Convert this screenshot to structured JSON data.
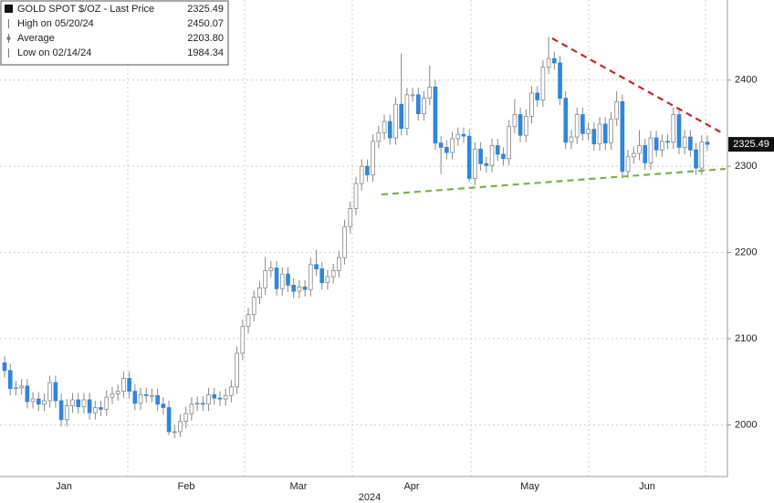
{
  "chart_data": {
    "type": "candlestick",
    "legend": [
      {
        "label": "GOLD SPOT $/OZ - Last Price",
        "value": 2325.49
      },
      {
        "label": "High on 05/20/24",
        "value": 2450.07
      },
      {
        "label": "Average",
        "value": 2203.8,
        "value_label": "2203.80"
      },
      {
        "label": "Low on 02/14/24",
        "value": 1984.34
      }
    ],
    "x_labels": [
      "Jan",
      "Feb",
      "Mar",
      "Apr",
      "May",
      "Jun"
    ],
    "x_sublabel": "2024",
    "ylim": [
      1940,
      2493
    ],
    "yticks": [
      2000,
      2100,
      2200,
      2300,
      2400
    ],
    "grid": true,
    "up_color": "#ffffff",
    "down_color": "#2e86de",
    "series": [
      {
        "name": "GOLD SPOT $/OZ",
        "open": [
          2072,
          2063,
          2042,
          2043,
          2045,
          2027,
          2030,
          2024,
          2028,
          2049,
          2028,
          2006,
          2022,
          2029,
          2021,
          2029,
          2014,
          2020,
          2018,
          2032,
          2036,
          2039,
          2054,
          2039,
          2025,
          2035,
          2034,
          2034,
          2024,
          2020,
          1992,
          1992,
          2004,
          2013,
          2024,
          2025,
          2024,
          2035,
          2031,
          2030,
          2034,
          2044,
          2083,
          2114,
          2128,
          2148,
          2159,
          2179,
          2182,
          2158,
          2175,
          2162,
          2155,
          2160,
          2157,
          2186,
          2181,
          2165,
          2172,
          2179,
          2194,
          2230,
          2251,
          2280,
          2300,
          2290,
          2329,
          2339,
          2352,
          2333,
          2372,
          2344,
          2383,
          2383,
          2361,
          2379,
          2392,
          2327,
          2322,
          2316,
          2332,
          2337,
          2335,
          2286,
          2320,
          2303,
          2301,
          2324,
          2314,
          2309,
          2346,
          2360,
          2336,
          2358,
          2385,
          2377,
          2415,
          2425,
          2420,
          2379,
          2328,
          2334,
          2360,
          2338,
          2343,
          2326,
          2349,
          2327,
          2355,
          2375,
          2294,
          2311,
          2315,
          2324,
          2304,
          2333,
          2319,
          2329,
          2328,
          2360,
          2322,
          2334,
          2319,
          2298,
          2328
        ],
        "high": [
          2080,
          2071,
          2051,
          2053,
          2053,
          2038,
          2038,
          2036,
          2057,
          2057,
          2036,
          2030,
          2037,
          2037,
          2037,
          2037,
          2028,
          2028,
          2040,
          2044,
          2047,
          2062,
          2062,
          2047,
          2043,
          2043,
          2042,
          2042,
          2032,
          2028,
          2000,
          2012,
          2021,
          2032,
          2033,
          2033,
          2043,
          2043,
          2039,
          2042,
          2052,
          2091,
          2122,
          2136,
          2156,
          2167,
          2195,
          2190,
          2190,
          2183,
          2183,
          2170,
          2168,
          2168,
          2194,
          2203,
          2189,
          2180,
          2187,
          2202,
          2238,
          2259,
          2288,
          2308,
          2308,
          2337,
          2347,
          2360,
          2360,
          2380,
          2431,
          2391,
          2391,
          2391,
          2387,
          2417,
          2400,
          2335,
          2330,
          2340,
          2345,
          2345,
          2343,
          2328,
          2328,
          2311,
          2332,
          2332,
          2322,
          2354,
          2378,
          2368,
          2366,
          2393,
          2393,
          2423,
          2450.07,
          2433,
          2428,
          2387,
          2342,
          2368,
          2368,
          2351,
          2351,
          2357,
          2357,
          2363,
          2387,
          2383,
          2319,
          2323,
          2342,
          2332,
          2341,
          2341,
          2337,
          2337,
          2368,
          2368,
          2342,
          2342,
          2327,
          2336,
          2336
        ],
        "low": [
          2055,
          2034,
          2034,
          2035,
          2019,
          2019,
          2016,
          2016,
          2020,
          2020,
          1998,
          1998,
          2014,
          2013,
          2013,
          2006,
          2006,
          2010,
          2010,
          2024,
          2028,
          2031,
          2031,
          2017,
          2017,
          2026,
          2026,
          2016,
          2012,
          1988,
          1984.34,
          1986,
          1996,
          2005,
          2016,
          2016,
          2016,
          2023,
          2022,
          2022,
          2026,
          2036,
          2075,
          2106,
          2120,
          2140,
          2151,
          2171,
          2150,
          2150,
          2154,
          2147,
          2147,
          2149,
          2149,
          2173,
          2157,
          2157,
          2164,
          2171,
          2186,
          2222,
          2243,
          2272,
          2282,
          2282,
          2321,
          2331,
          2325,
          2325,
          2336,
          2336,
          2375,
          2353,
          2353,
          2371,
          2319,
          2291,
          2308,
          2308,
          2324,
          2327,
          2282,
          2278,
          2295,
          2293,
          2293,
          2306,
          2301,
          2301,
          2338,
          2328,
          2328,
          2350,
          2369,
          2369,
          2407,
          2412,
          2371,
          2320,
          2320,
          2326,
          2330,
          2330,
          2318,
          2318,
          2319,
          2319,
          2347,
          2286,
          2286,
          2303,
          2307,
          2296,
          2296,
          2311,
          2311,
          2320,
          2320,
          2314,
          2314,
          2311,
          2290,
          2290,
          2318
        ],
        "close": [
          2063,
          2042,
          2043,
          2045,
          2027,
          2030,
          2024,
          2028,
          2049,
          2028,
          2006,
          2022,
          2029,
          2021,
          2029,
          2014,
          2020,
          2018,
          2032,
          2036,
          2039,
          2054,
          2039,
          2025,
          2035,
          2034,
          2034,
          2024,
          2020,
          1992,
          1992,
          2004,
          2013,
          2024,
          2025,
          2024,
          2035,
          2031,
          2030,
          2034,
          2044,
          2083,
          2114,
          2128,
          2148,
          2159,
          2179,
          2182,
          2158,
          2175,
          2162,
          2155,
          2160,
          2157,
          2186,
          2181,
          2165,
          2172,
          2179,
          2194,
          2230,
          2251,
          2280,
          2300,
          2290,
          2329,
          2339,
          2352,
          2333,
          2372,
          2344,
          2383,
          2383,
          2361,
          2379,
          2392,
          2327,
          2322,
          2316,
          2332,
          2337,
          2335,
          2286,
          2320,
          2303,
          2301,
          2324,
          2314,
          2309,
          2346,
          2360,
          2336,
          2358,
          2385,
          2377,
          2415,
          2425,
          2420,
          2379,
          2328,
          2334,
          2360,
          2338,
          2343,
          2326,
          2349,
          2327,
          2355,
          2375,
          2294,
          2311,
          2315,
          2324,
          2304,
          2333,
          2319,
          2329,
          2328,
          2360,
          2322,
          2334,
          2319,
          2298,
          2328,
          2325.49
        ]
      }
    ]
  }
}
